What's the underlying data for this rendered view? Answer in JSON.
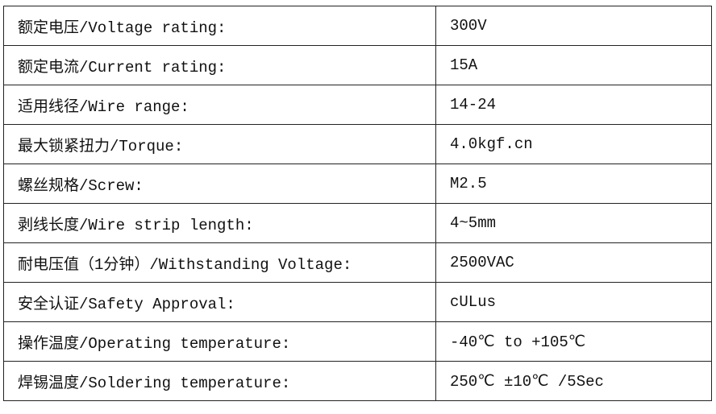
{
  "rows": [
    {
      "label": "额定电压/Voltage rating:",
      "value": "300V"
    },
    {
      "label": "额定电流/Current rating:",
      "value": "15A"
    },
    {
      "label": "适用线径/Wire range:",
      "value": "14-24"
    },
    {
      "label": "最大锁紧扭力/Torque:",
      "value": "4.0kgf.cn"
    },
    {
      "label": "螺丝规格/Screw:",
      "value": "M2.5"
    },
    {
      "label": "剥线长度/Wire strip length:",
      "value": "4~5mm"
    },
    {
      "label": "耐电压值（1分钟）/Withstanding Voltage:",
      "value": "2500VAC"
    },
    {
      "label": "安全认证/Safety Approval:",
      "value": "cULus"
    },
    {
      "label": "操作温度/Operating temperature:",
      "value": "-40℃ to +105℃"
    },
    {
      "label": "焊锡温度/Soldering temperature:",
      "value": "250℃ ±10℃ /5Sec"
    }
  ]
}
